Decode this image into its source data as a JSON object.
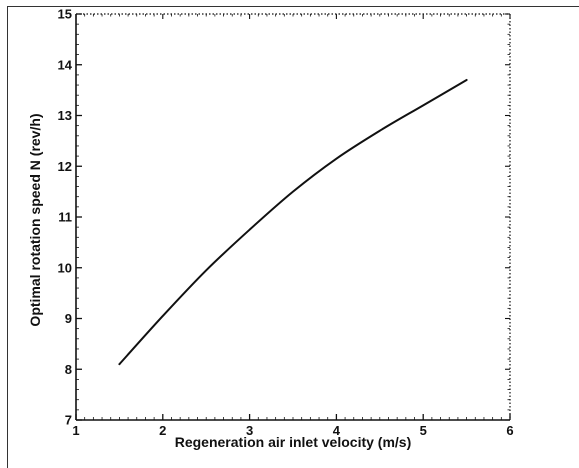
{
  "chart_data": {
    "type": "line",
    "title": "",
    "xlabel": "Regeneration air inlet velocity (m/s)",
    "ylabel": "Optimal rotation speed N (rev/h)",
    "xlim": [
      1,
      6
    ],
    "ylim": [
      7,
      15
    ],
    "xticks": [
      "1",
      "2",
      "3",
      "4",
      "5",
      "6"
    ],
    "yticks": [
      "7",
      "8",
      "9",
      "10",
      "11",
      "12",
      "13",
      "14",
      "15"
    ],
    "grid": false,
    "legend": "none",
    "series": [
      {
        "x": [
          1.5,
          2.0,
          2.5,
          3.0,
          3.5,
          4.0,
          4.5,
          5.0,
          5.5
        ],
        "y": [
          8.1,
          9.05,
          9.95,
          10.75,
          11.5,
          12.15,
          12.7,
          13.2,
          13.7
        ]
      }
    ],
    "colors": {
      "line": "#111111",
      "axis": "#111111",
      "frame": "#333333",
      "background": "#ffffff"
    }
  }
}
